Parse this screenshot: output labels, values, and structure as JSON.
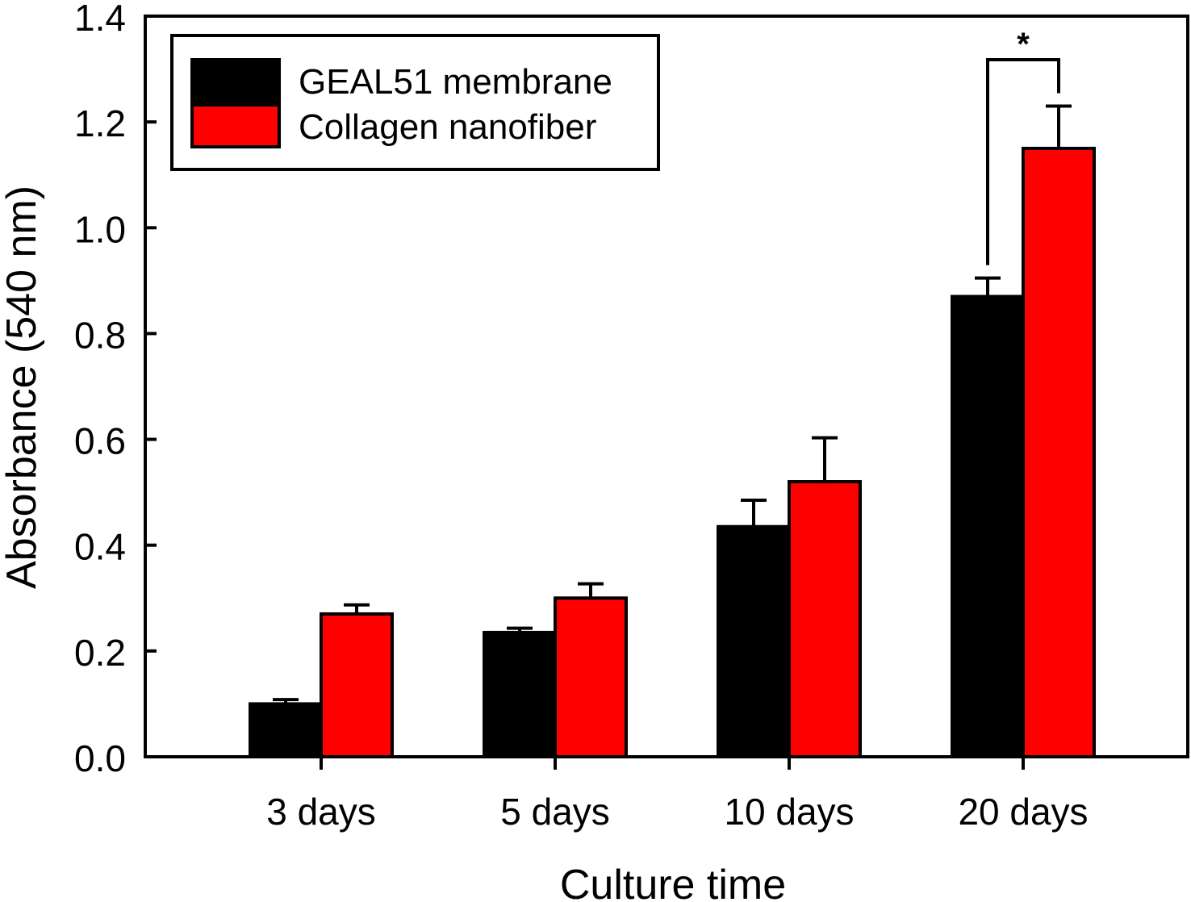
{
  "chart_data": {
    "type": "bar",
    "xlabel": "Culture time",
    "ylabel": "Absorbance (540 nm)",
    "categories": [
      "3 days",
      "5 days",
      "10 days",
      "20 days"
    ],
    "ylim": [
      0,
      1.4
    ],
    "yticks": [
      "0.0",
      "0.2",
      "0.4",
      "0.6",
      "0.8",
      "1.0",
      "1.2",
      "1.4"
    ],
    "grid": false,
    "legend_position": "top-left",
    "series": [
      {
        "name": "GEAL51 membrane",
        "color": "#000000",
        "values": [
          0.1,
          0.235,
          0.435,
          0.87
        ],
        "errors": [
          0.008,
          0.008,
          0.05,
          0.035
        ]
      },
      {
        "name": "Collagen nanofiber",
        "color": "#ff0000",
        "values": [
          0.27,
          0.3,
          0.52,
          1.15
        ],
        "errors": [
          0.017,
          0.027,
          0.083,
          0.08
        ]
      }
    ],
    "annotations": [
      {
        "text": "*",
        "category": "20 days",
        "type": "significance-bracket"
      }
    ]
  }
}
